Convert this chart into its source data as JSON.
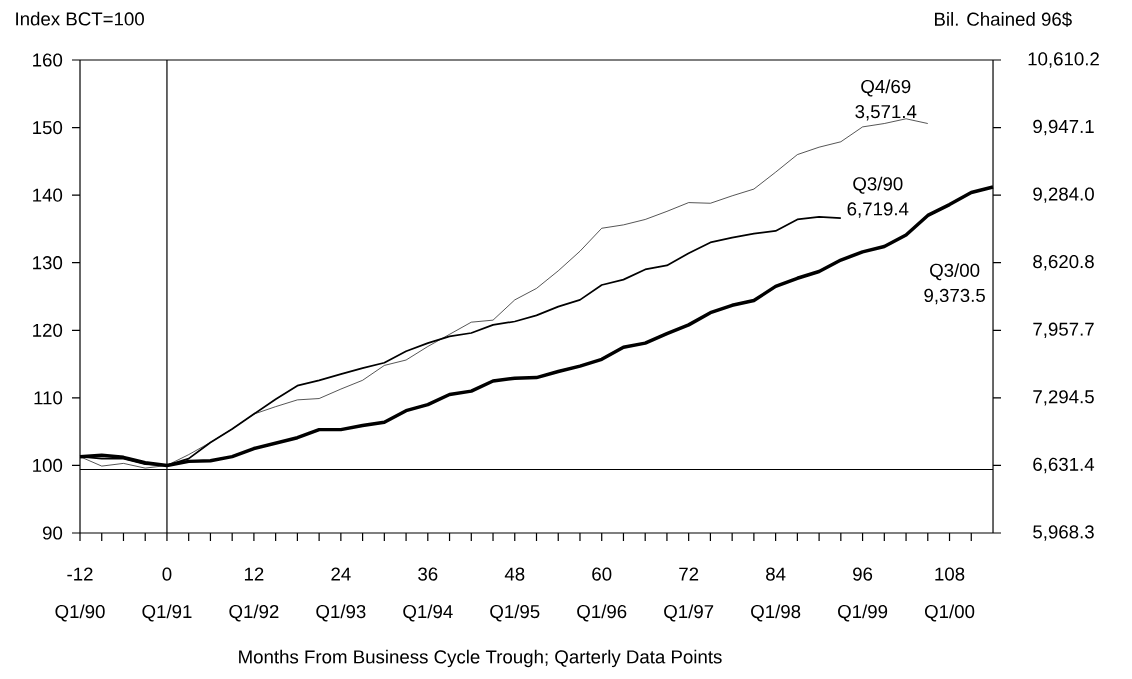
{
  "chart_data": {
    "type": "line",
    "xlabel": "Months From Business Cycle Trough; Qarterly Data Points",
    "ylabel": "Index  BCT=100",
    "y2label": "Bil. Chained 96$",
    "xlim": [
      -12,
      114
    ],
    "xticks": [
      -12,
      {
        "value": -9,
        "label": null
      },
      {
        "value": -6,
        "label": null
      },
      {
        "value": -3,
        "label": null
      },
      0,
      {
        "value": 3,
        "label": null
      },
      {
        "value": 6,
        "label": null
      },
      {
        "value": 9,
        "label": null
      },
      12,
      {
        "value": 15,
        "label": null
      },
      {
        "value": 18,
        "label": null
      },
      {
        "value": 21,
        "label": null
      },
      24,
      {
        "value": 27,
        "label": null
      },
      {
        "value": 30,
        "label": null
      },
      {
        "value": 33,
        "label": null
      },
      36,
      {
        "value": 39,
        "label": null
      },
      {
        "value": 42,
        "label": null
      },
      {
        "value": 45,
        "label": null
      },
      48,
      {
        "value": 51,
        "label": null
      },
      {
        "value": 54,
        "label": null
      },
      {
        "value": 57,
        "label": null
      },
      60,
      {
        "value": 63,
        "label": null
      },
      {
        "value": 66,
        "label": null
      },
      {
        "value": 69,
        "label": null
      },
      72,
      {
        "value": 75,
        "label": null
      },
      {
        "value": 78,
        "label": null
      },
      {
        "value": 81,
        "label": null
      },
      84,
      {
        "value": 87,
        "label": null
      },
      {
        "value": 90,
        "label": null
      },
      {
        "value": 93,
        "label": null
      },
      96,
      {
        "value": 99,
        "label": null
      },
      {
        "value": 102,
        "label": null
      },
      {
        "value": 105,
        "label": null
      },
      108,
      {
        "value": 111,
        "label": null
      }
    ],
    "ylim": [
      90,
      160
    ],
    "yticks": [
      90,
      100,
      110,
      120,
      130,
      140,
      150,
      160
    ],
    "y2lim": [
      5968.3,
      10610.2
    ],
    "y2ticks": [
      {
        "value": 5968.3,
        "label": "5,968.3"
      },
      {
        "value": 6631.4,
        "label": "6,631.4"
      },
      {
        "value": 7294.5,
        "label": "7,294.5"
      },
      {
        "value": 7957.7,
        "label": "7,957.7"
      },
      {
        "value": 8620.8,
        "label": "8,620.8"
      },
      {
        "value": 9284.0,
        "label": "9,284.0"
      },
      {
        "value": 9947.1,
        "label": "9,947.1"
      },
      {
        "value": 10610.2,
        "label": "10,610.2"
      }
    ],
    "grid": false,
    "marker": "none",
    "line_style": "solid",
    "ref_lines": [
      {
        "axis": "y",
        "value": 99.4,
        "label": null,
        "color": "#000000"
      },
      {
        "axis": "x",
        "value": 0,
        "label": null,
        "color": "#000000"
      }
    ],
    "series": [
      {
        "name": "Q4/69",
        "color": "#000000",
        "x": [
          -12,
          -9,
          -6,
          -3,
          0,
          3,
          6,
          9,
          12,
          15,
          18,
          21,
          24,
          27,
          30,
          33,
          36,
          39,
          42,
          45,
          48,
          51,
          54,
          57,
          60,
          63,
          66,
          69,
          72,
          75,
          78,
          81,
          84,
          87,
          90,
          93,
          96,
          99,
          102,
          105
        ],
        "values": [
          101.3,
          99.9,
          100.3,
          99.6,
          100.0,
          101.6,
          103.4,
          105.4,
          107.6,
          108.7,
          109.7,
          109.9,
          111.3,
          112.6,
          114.8,
          115.6,
          117.6,
          119.4,
          121.2,
          121.5,
          124.5,
          126.2,
          128.8,
          131.7,
          135.1,
          135.6,
          136.4,
          137.6,
          138.9,
          138.8,
          139.9,
          140.9,
          143.4,
          146.0,
          147.1,
          147.9,
          150.1,
          150.6,
          151.3,
          150.6
        ]
      },
      {
        "name": "Q3/90",
        "color": "#000000",
        "x": [
          -12,
          -9,
          -6,
          -3,
          0,
          3,
          6,
          9,
          12,
          15,
          18,
          21,
          24,
          27,
          30,
          33,
          36,
          39,
          42,
          45,
          48,
          51,
          54,
          57,
          60,
          63,
          66,
          69,
          72,
          75,
          78,
          81,
          84,
          87,
          90,
          93
        ],
        "values": [
          101.3,
          101.0,
          101.0,
          100.2,
          100.0,
          101.0,
          103.4,
          105.4,
          107.6,
          109.8,
          111.8,
          112.6,
          113.5,
          114.4,
          115.2,
          116.9,
          118.1,
          119.1,
          119.6,
          120.8,
          121.3,
          122.2,
          123.5,
          124.5,
          126.7,
          127.5,
          129.0,
          129.6,
          131.4,
          133.0,
          133.7,
          134.3,
          134.7,
          136.4,
          136.8,
          136.6
        ]
      },
      {
        "name": "Q3/00",
        "color": "#000000",
        "x": [
          -12,
          -9,
          -6,
          -3,
          0,
          3,
          6,
          9,
          12,
          15,
          18,
          21,
          24,
          27,
          30,
          33,
          36,
          39,
          42,
          45,
          48,
          51,
          54,
          57,
          60,
          63,
          66,
          69,
          72,
          75,
          78,
          81,
          84,
          87,
          90,
          93,
          96,
          99,
          102,
          105,
          108,
          111,
          114
        ],
        "values": [
          101.3,
          101.5,
          101.2,
          100.4,
          100.0,
          100.6,
          100.7,
          101.3,
          102.5,
          103.3,
          104.1,
          105.3,
          105.3,
          105.9,
          106.4,
          108.1,
          109.0,
          110.5,
          111.0,
          112.5,
          112.9,
          113.0,
          113.9,
          114.7,
          115.7,
          117.5,
          118.1,
          119.5,
          120.8,
          122.6,
          123.7,
          124.4,
          126.5,
          127.7,
          128.7,
          130.4,
          131.6,
          132.4,
          134.1,
          137.0,
          138.6,
          140.4,
          141.2
        ]
      }
    ],
    "annotations": [
      "3,571.4",
      "6,719.4",
      "9,373.5",
      "Q1/90",
      "Q1/91",
      "Q1/92",
      "Q1/93",
      "Q1/94",
      "Q1/95",
      "Q1/96",
      "Q1/97",
      "Q1/98",
      "Q1/99",
      "Q1/00"
    ]
  }
}
